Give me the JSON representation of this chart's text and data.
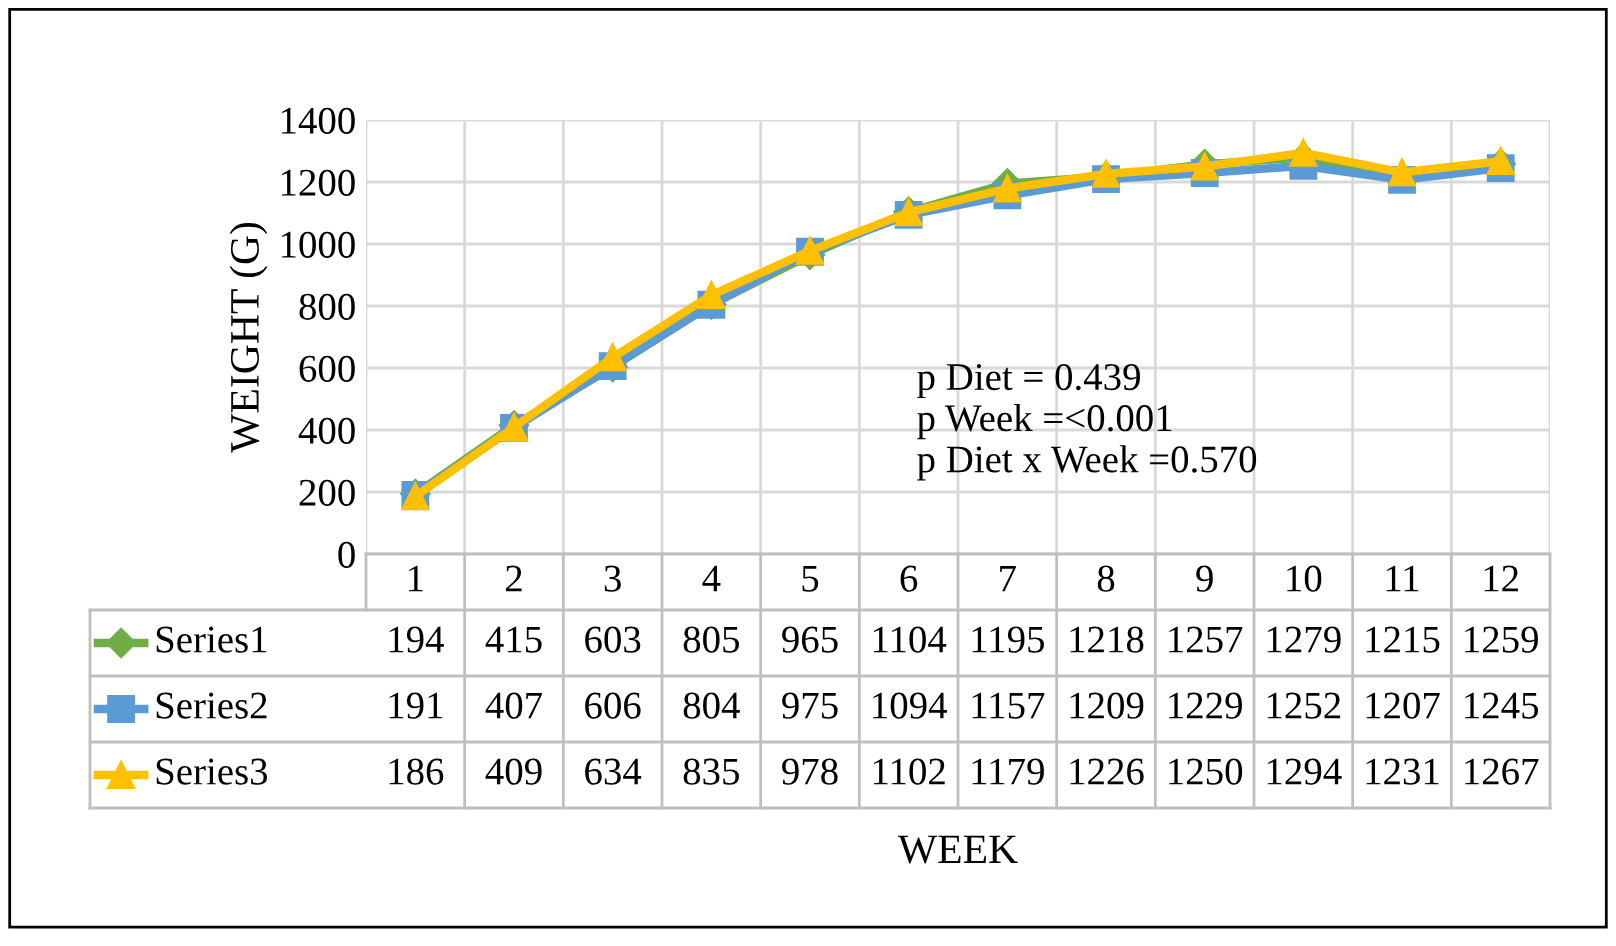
{
  "chart_data": {
    "type": "line",
    "ylabel": "WEIGHT (G)",
    "categories": [
      "1",
      "2",
      "3",
      "4",
      "5",
      "6",
      "7",
      "8",
      "9",
      "10",
      "11",
      "12"
    ],
    "series": [
      {
        "name": "Series1",
        "color": "#70ad47",
        "marker": "diamond",
        "values": [
          194,
          415,
          603,
          805,
          965,
          1104,
          1195,
          1218,
          1257,
          1279,
          1215,
          1259
        ]
      },
      {
        "name": "Series2",
        "color": "#5b9bd5",
        "marker": "square",
        "values": [
          191,
          407,
          606,
          804,
          975,
          1094,
          1157,
          1209,
          1229,
          1252,
          1207,
          1245
        ]
      },
      {
        "name": "Series3",
        "color": "#ffc000",
        "marker": "triangle",
        "values": [
          186,
          409,
          634,
          835,
          978,
          1102,
          1179,
          1226,
          1250,
          1294,
          1231,
          1267
        ]
      }
    ],
    "ylim": [
      0,
      1400
    ],
    "yticks": [
      0,
      200,
      400,
      600,
      800,
      1000,
      1200,
      1400
    ],
    "grid": true,
    "data_labels": true,
    "legend": "bottom left",
    "line_style": "solid",
    "annotations": [
      "p Diet = 0.439",
      "p Week =<0.001",
      "p Diet x Week =0.570",
      "WEEK"
    ]
  }
}
